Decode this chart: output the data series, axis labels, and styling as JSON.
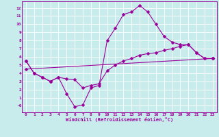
{
  "title": "",
  "xlabel": "Windchill (Refroidissement éolien,°C)",
  "xlim": [
    -0.5,
    23.5
  ],
  "ylim": [
    -0.8,
    12.8
  ],
  "ytick_vals": [
    0,
    1,
    2,
    3,
    4,
    5,
    6,
    7,
    8,
    9,
    10,
    11,
    12
  ],
  "ytick_labels": [
    "-0",
    "1",
    "2",
    "3",
    "4",
    "5",
    "6",
    "7",
    "8",
    "9",
    "10",
    "11",
    "12"
  ],
  "xtick_vals": [
    0,
    1,
    2,
    3,
    4,
    5,
    6,
    7,
    8,
    9,
    10,
    11,
    12,
    13,
    14,
    15,
    16,
    17,
    18,
    19,
    20,
    21,
    22,
    23
  ],
  "xtick_labels": [
    "0",
    "1",
    "2",
    "3",
    "4",
    "5",
    "6",
    "7",
    "8",
    "9",
    "10",
    "11",
    "12",
    "13",
    "14",
    "15",
    "16",
    "17",
    "18",
    "19",
    "20",
    "21",
    "22",
    "23"
  ],
  "bg_color": "#c8ecec",
  "line_color": "#990099",
  "grid_color": "#ffffff",
  "line1_x": [
    0,
    1,
    2,
    3,
    4,
    5,
    6,
    7,
    8,
    9,
    10,
    11,
    12,
    13,
    14,
    15,
    16,
    17,
    18,
    19,
    20,
    21,
    22,
    23
  ],
  "line1_y": [
    5.5,
    4.0,
    3.5,
    3.0,
    3.5,
    1.5,
    -0.1,
    0.1,
    2.2,
    2.5,
    8.0,
    9.5,
    11.2,
    11.5,
    12.3,
    11.5,
    10.0,
    8.5,
    7.8,
    7.5,
    7.5,
    6.5,
    5.8,
    5.8
  ],
  "line2_x": [
    0,
    1,
    2,
    3,
    4,
    5,
    6,
    7,
    8,
    9,
    10,
    11,
    12,
    13,
    14,
    15,
    16,
    17,
    18,
    19,
    20,
    21,
    22,
    23
  ],
  "line2_y": [
    5.5,
    4.0,
    3.5,
    3.0,
    3.5,
    3.3,
    3.2,
    2.2,
    2.5,
    2.7,
    4.3,
    5.0,
    5.5,
    5.8,
    6.2,
    6.4,
    6.5,
    6.8,
    7.0,
    7.3,
    7.5,
    6.5,
    5.8,
    5.8
  ],
  "line3_x": [
    0,
    23
  ],
  "line3_y": [
    4.5,
    5.8
  ],
  "markersize": 2.5,
  "linewidth": 0.8
}
